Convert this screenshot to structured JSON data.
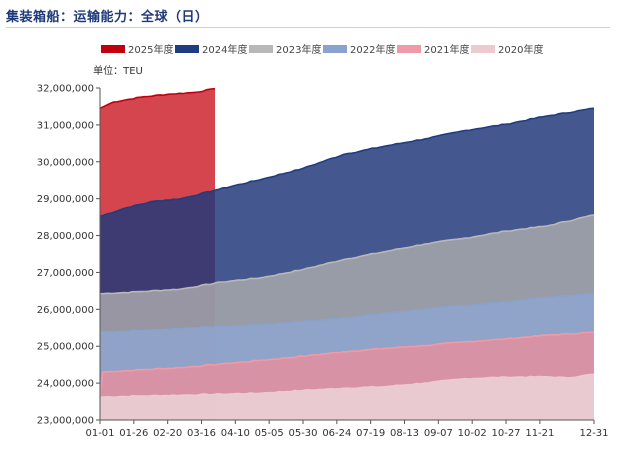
{
  "title": "集装箱船：运输能力：全球（日）",
  "chart_data": {
    "type": "area",
    "unit_label": "单位：TEU",
    "ylim": [
      23000000,
      32000000
    ],
    "y_ticks": [
      23000000,
      24000000,
      25000000,
      26000000,
      27000000,
      28000000,
      29000000,
      30000000,
      31000000,
      32000000
    ],
    "y_tick_labels": [
      "23,000,000",
      "24,000,000",
      "25,000,000",
      "26,000,000",
      "27,000,000",
      "28,000,000",
      "29,000,000",
      "30,000,000",
      "31,000,000",
      "32,000,000"
    ],
    "x_range_days": [
      0,
      365
    ],
    "x_ticks": [
      {
        "label": "01-01",
        "day": 0
      },
      {
        "label": "01-26",
        "day": 25
      },
      {
        "label": "02-20",
        "day": 50
      },
      {
        "label": "03-16",
        "day": 75
      },
      {
        "label": "04-10",
        "day": 100
      },
      {
        "label": "05-05",
        "day": 125
      },
      {
        "label": "05-30",
        "day": 150
      },
      {
        "label": "06-24",
        "day": 175
      },
      {
        "label": "07-19",
        "day": 200
      },
      {
        "label": "08-13",
        "day": 225
      },
      {
        "label": "09-07",
        "day": 250
      },
      {
        "label": "10-02",
        "day": 275
      },
      {
        "label": "10-27",
        "day": 300
      },
      {
        "label": "11-21",
        "day": 325
      },
      {
        "label": "12-31",
        "day": 365
      }
    ],
    "series": [
      {
        "name": "2025年度",
        "color": "#c0000f",
        "fill": "#d23b44",
        "fill_opacity": 0.95,
        "points": [
          [
            0,
            31450000
          ],
          [
            10,
            31620000
          ],
          [
            30,
            31750000
          ],
          [
            50,
            31830000
          ],
          [
            70,
            31880000
          ],
          [
            85,
            31980000
          ]
        ]
      },
      {
        "name": "2024年度",
        "color": "#1f3d80",
        "fill": "#23397a",
        "fill_opacity": 0.85,
        "points": [
          [
            0,
            28520000
          ],
          [
            20,
            28760000
          ],
          [
            40,
            28930000
          ],
          [
            60,
            29000000
          ],
          [
            85,
            29230000
          ],
          [
            120,
            29530000
          ],
          [
            150,
            29820000
          ],
          [
            180,
            30200000
          ],
          [
            210,
            30420000
          ],
          [
            240,
            30620000
          ],
          [
            270,
            30850000
          ],
          [
            300,
            31020000
          ],
          [
            330,
            31240000
          ],
          [
            365,
            31450000
          ]
        ]
      },
      {
        "name": "2023年度",
        "color": "#b8b8b8",
        "fill": "#aeaeae",
        "fill_opacity": 0.8,
        "points": [
          [
            0,
            26420000
          ],
          [
            30,
            26480000
          ],
          [
            60,
            26550000
          ],
          [
            90,
            26740000
          ],
          [
            120,
            26860000
          ],
          [
            150,
            27080000
          ],
          [
            180,
            27350000
          ],
          [
            210,
            27560000
          ],
          [
            240,
            27770000
          ],
          [
            270,
            27930000
          ],
          [
            300,
            28120000
          ],
          [
            330,
            28260000
          ],
          [
            365,
            28560000
          ]
        ]
      },
      {
        "name": "2022年度",
        "color": "#8aa2cf",
        "fill": "#8ea5cf",
        "fill_opacity": 0.85,
        "points": [
          [
            0,
            25380000
          ],
          [
            30,
            25420000
          ],
          [
            60,
            25480000
          ],
          [
            90,
            25540000
          ],
          [
            120,
            25580000
          ],
          [
            150,
            25670000
          ],
          [
            180,
            25760000
          ],
          [
            210,
            25890000
          ],
          [
            240,
            26000000
          ],
          [
            270,
            26100000
          ],
          [
            300,
            26200000
          ],
          [
            330,
            26320000
          ],
          [
            365,
            26430000
          ]
        ]
      },
      {
        "name": "2021年度",
        "color": "#ef9aa6",
        "fill": "#e88e9c",
        "fill_opacity": 0.8,
        "points": [
          [
            0,
            23600000
          ],
          [
            2,
            24300000
          ],
          [
            30,
            24360000
          ],
          [
            60,
            24420000
          ],
          [
            90,
            24520000
          ],
          [
            120,
            24620000
          ],
          [
            150,
            24730000
          ],
          [
            180,
            24850000
          ],
          [
            210,
            24940000
          ],
          [
            240,
            25020000
          ],
          [
            270,
            25120000
          ],
          [
            300,
            25200000
          ],
          [
            330,
            25300000
          ],
          [
            365,
            25380000
          ]
        ]
      },
      {
        "name": "2020年度",
        "color": "#ebcbd0",
        "fill": "#eaccd2",
        "fill_opacity": 0.95,
        "points": [
          [
            0,
            23620000
          ],
          [
            30,
            23650000
          ],
          [
            60,
            23670000
          ],
          [
            90,
            23700000
          ],
          [
            120,
            23730000
          ],
          [
            150,
            23800000
          ],
          [
            180,
            23860000
          ],
          [
            210,
            23900000
          ],
          [
            240,
            24000000
          ],
          [
            270,
            24120000
          ],
          [
            300,
            24160000
          ],
          [
            330,
            24170000
          ],
          [
            345,
            24140000
          ],
          [
            365,
            24240000
          ]
        ]
      }
    ]
  }
}
